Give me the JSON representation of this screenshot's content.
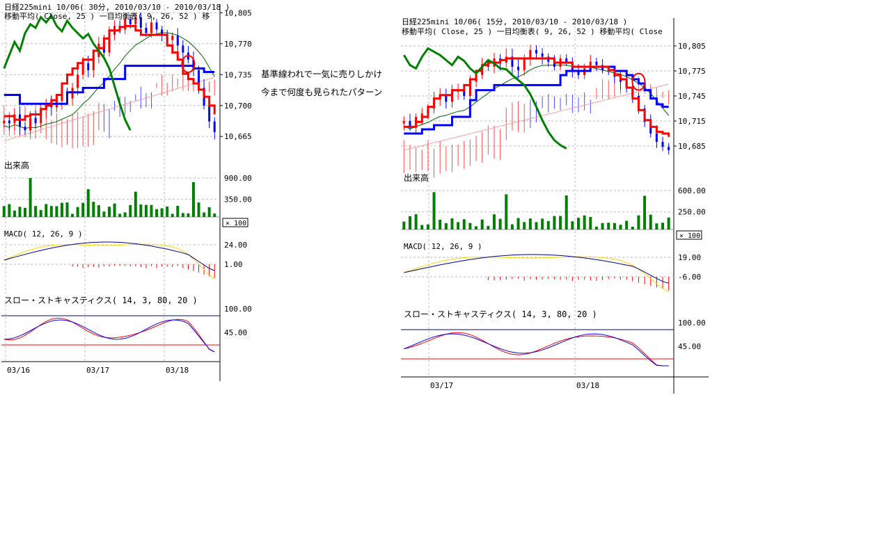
{
  "annotation": {
    "line1": "基準線われで一気に売りしかけ",
    "line2": "今まで何度も見られたパターン"
  },
  "colors": {
    "up_candle": "#ff0000",
    "down_candle": "#0000ff",
    "kijun": "#0000ff",
    "tenkan": "#ff0000",
    "chikou": "#008000",
    "volume": "#008000",
    "macd": "#00008b",
    "signal": "#ffd700",
    "stoch_k": "#0000ff",
    "stoch_d": "#ff0000",
    "cloud_red": "#ff0000",
    "cloud_blue": "#0000ff"
  },
  "chart_data": [
    {
      "type": "candlestick",
      "title": "日経225mini 10/06( 30分, 2010/03/10 - 2010/03/18 )",
      "subtitle": "移動平均( Close, 25 )    一目均衡表( 9, 26, 52 )    移",
      "price_ticks": [
        "10,805",
        "10,770",
        "10,735",
        "10,700",
        "10,665"
      ],
      "ylim": [
        10640,
        10810
      ],
      "x_labels": [
        "03/16",
        "03/17",
        "03/18"
      ],
      "volume": {
        "label": "出来高",
        "ticks": [
          "900.00",
          "350.00"
        ],
        "multiplier": "× 100"
      },
      "macd": {
        "label": "MACD( 12, 26, 9 )",
        "ticks": [
          "24.00",
          "1.00"
        ]
      },
      "stochastics": {
        "label": "スロー・ストキャスティクス( 14, 3, 80, 20 )",
        "ticks": [
          "100.00",
          "45.00"
        ]
      },
      "close": [
        10683,
        10680,
        10690,
        10676,
        10672,
        10686,
        10680,
        10695,
        10702,
        10698,
        10705,
        10712,
        10708,
        10720,
        10735,
        10748,
        10740,
        10755,
        10770,
        10760,
        10780,
        10790,
        10786,
        10798,
        10792,
        10800,
        10788,
        10782,
        10794,
        10786,
        10780,
        10774,
        10779,
        10768,
        10760,
        10752,
        10740,
        10720,
        10700,
        10682,
        10670
      ],
      "kijun": [
        10712,
        10712,
        10712,
        10702,
        10702,
        10702,
        10702,
        10702,
        10702,
        10702,
        10702,
        10702,
        10715,
        10715,
        10715,
        10720,
        10720,
        10720,
        10720,
        10730,
        10730,
        10730,
        10730,
        10745,
        10745,
        10745,
        10745,
        10745,
        10745,
        10745,
        10745,
        10745,
        10745,
        10745,
        10745,
        10745,
        10742,
        10742,
        10738,
        10738,
        10738
      ],
      "tenkan": [
        10688,
        10688,
        10684,
        10684,
        10688,
        10690,
        10690,
        10696,
        10700,
        10706,
        10712,
        10725,
        10735,
        10742,
        10748,
        10752,
        10752,
        10762,
        10765,
        10776,
        10785,
        10785,
        10789,
        10790,
        10790,
        10785,
        10780,
        10780,
        10780,
        10780,
        10780,
        10768,
        10760,
        10752,
        10736,
        10730,
        10725,
        10718,
        10710,
        10700,
        10690
      ]
    },
    {
      "type": "candlestick",
      "title": "日経225mini 10/06( 15分, 2010/03/10 - 2010/03/18 )",
      "subtitle": "移動平均( Close, 25 )    一目均衡表( 9, 26, 52 )    移動平均( Close",
      "price_ticks": [
        "10,805",
        "10,775",
        "10,745",
        "10,715",
        "10,685"
      ],
      "ylim": [
        10660,
        10810
      ],
      "x_labels": [
        "03/17",
        "03/18"
      ],
      "volume": {
        "label": "出来高",
        "ticks": [
          "600.00",
          "250.00"
        ],
        "multiplier": "× 100"
      },
      "macd": {
        "label": "MACD( 12, 26, 9 )",
        "ticks": [
          "19.00",
          "-6.00"
        ]
      },
      "stochastics": {
        "label": "スロー・ストキャスティクス( 14, 3, 80, 20 )",
        "ticks": [
          "100.00",
          "45.00"
        ]
      },
      "close": [
        10715,
        10708,
        10720,
        10724,
        10730,
        10742,
        10746,
        10738,
        10750,
        10752,
        10745,
        10762,
        10770,
        10782,
        10780,
        10790,
        10785,
        10792,
        10780,
        10776,
        10790,
        10800,
        10796,
        10792,
        10786,
        10780,
        10790,
        10785,
        10776,
        10770,
        10778,
        10786,
        10782,
        10776,
        10775,
        10768,
        10762,
        10756,
        10745,
        10730,
        10714,
        10700,
        10690,
        10684,
        10680
      ],
      "kijun": [
        10700,
        10700,
        10700,
        10705,
        10705,
        10710,
        10710,
        10710,
        10720,
        10720,
        10720,
        10740,
        10752,
        10752,
        10752,
        10758,
        10758,
        10758,
        10758,
        10758,
        10758,
        10758,
        10758,
        10758,
        10758,
        10758,
        10770,
        10775,
        10775,
        10775,
        10775,
        10780,
        10780,
        10780,
        10780,
        10775,
        10775,
        10770,
        10765,
        10760,
        10752,
        10742,
        10735,
        10732,
        10732
      ],
      "tenkan": [
        10708,
        10708,
        10714,
        10720,
        10732,
        10742,
        10746,
        10746,
        10752,
        10752,
        10758,
        10765,
        10775,
        10782,
        10785,
        10785,
        10788,
        10790,
        10790,
        10790,
        10790,
        10790,
        10790,
        10790,
        10790,
        10785,
        10785,
        10785,
        10780,
        10780,
        10780,
        10780,
        10780,
        10780,
        10776,
        10770,
        10765,
        10755,
        10742,
        10728,
        10716,
        10708,
        10702,
        10700,
        10696
      ]
    }
  ]
}
